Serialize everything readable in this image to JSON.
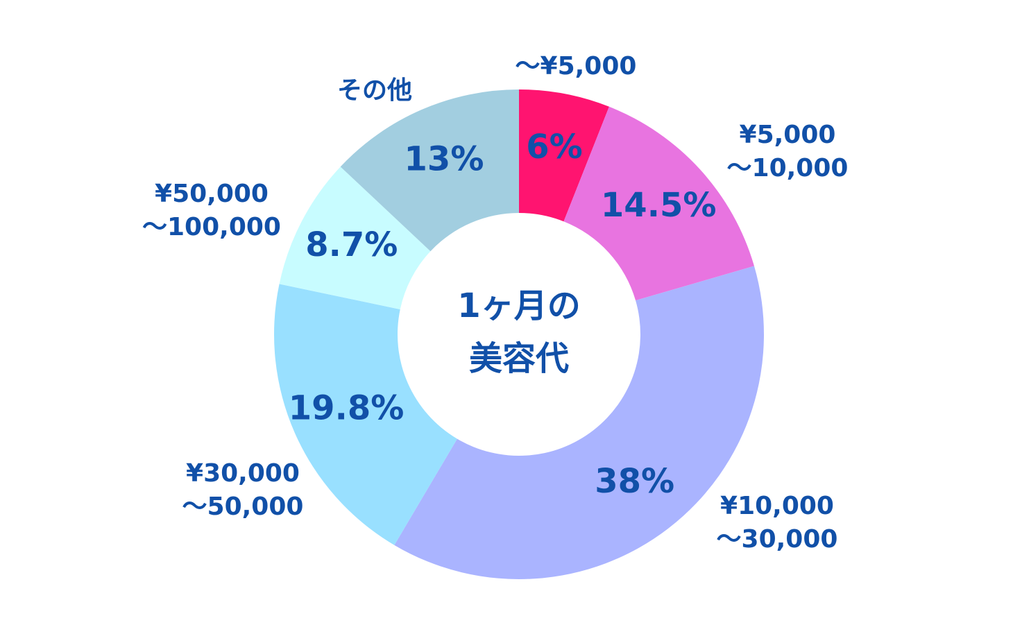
{
  "chart_data": {
    "type": "donut",
    "title": "1ヶ月の\n美容代",
    "categories": [
      "～¥5,000",
      "¥5,000\n～10,000",
      "¥10,000\n～30,000",
      "¥30,000\n～50,000",
      "¥50,000\n～100,000",
      "その他"
    ],
    "values": [
      6,
      14.5,
      38,
      19.8,
      8.7,
      13
    ],
    "value_labels": [
      "6%",
      "14.5%",
      "38%",
      "19.8%",
      "8.7%",
      "13%"
    ],
    "colors": [
      "#ff1470",
      "#e874e0",
      "#aab4ff",
      "#99e0ff",
      "#c8fcff",
      "#a2cee0"
    ]
  }
}
